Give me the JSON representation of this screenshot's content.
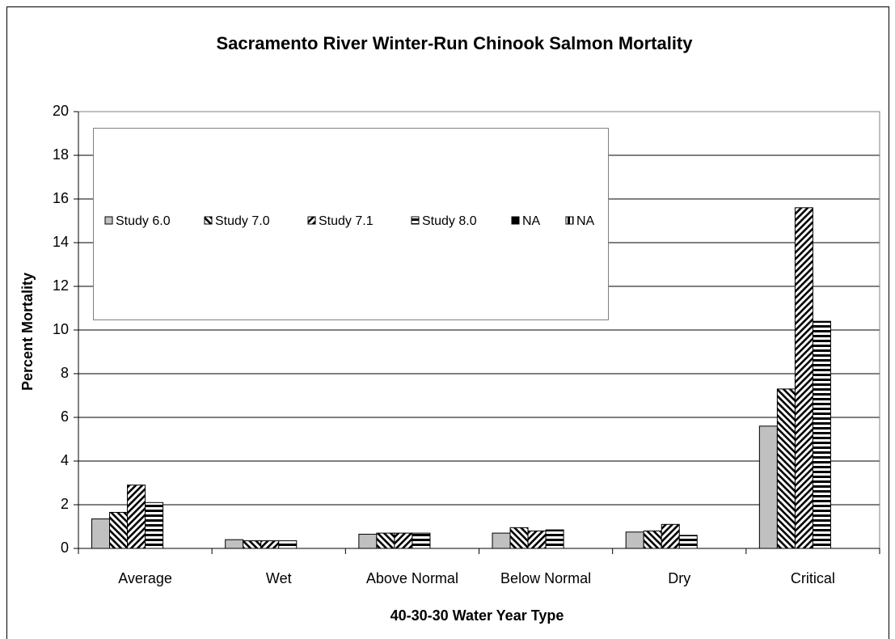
{
  "chart_data": {
    "type": "bar",
    "title": "Sacramento River Winter-Run Chinook Salmon Mortality",
    "x_label": "40-30-30 Water Year Type",
    "y_label": "Percent Mortality",
    "categories": [
      "Average",
      "Wet",
      "Above Normal",
      "Below Normal",
      "Dry",
      "Critical"
    ],
    "series": [
      {
        "name": "Study 6.0",
        "color": "#c0c0c0",
        "pattern": "solid",
        "values": [
          1.35,
          0.4,
          0.65,
          0.7,
          0.75,
          5.6
        ]
      },
      {
        "name": "Study 7.0",
        "color": "#000000",
        "pattern": "backward-diagonal",
        "values": [
          1.65,
          0.35,
          0.7,
          0.95,
          0.8,
          7.3
        ]
      },
      {
        "name": "Study 7.1",
        "color": "#000000",
        "pattern": "forward-diagonal",
        "values": [
          2.9,
          0.35,
          0.7,
          0.8,
          1.1,
          15.6
        ]
      },
      {
        "name": "Study 8.0",
        "color": "#000000",
        "pattern": "horizontal",
        "values": [
          2.1,
          0.35,
          0.7,
          0.85,
          0.6,
          10.4
        ]
      },
      {
        "name": "NA",
        "color": "#000000",
        "pattern": "solid",
        "values": [
          null,
          null,
          null,
          null,
          null,
          null
        ]
      },
      {
        "name": "NA",
        "color": "#000000",
        "pattern": "vertical",
        "values": [
          null,
          null,
          null,
          null,
          null,
          null
        ]
      }
    ],
    "ylim": [
      0,
      20
    ],
    "yticks": [
      0,
      2,
      4,
      6,
      8,
      10,
      12,
      14,
      16,
      18,
      20
    ],
    "grid": true,
    "legend": "top-left"
  }
}
